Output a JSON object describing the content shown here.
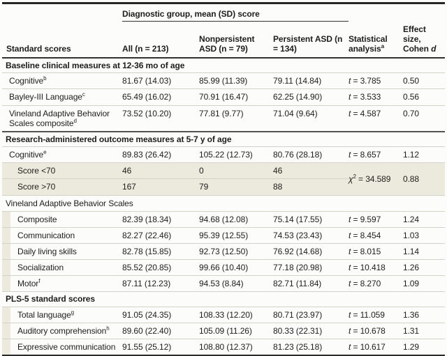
{
  "colors": {
    "row_shade": "#eceadd",
    "rule_dark": "#262624",
    "rule_section": "#52524e",
    "rule_light": "#d4d1c8",
    "text": "#1d1d1b"
  },
  "header": {
    "standard_scores": "Standard scores",
    "spanner": "Diagnostic group, mean (SD) score",
    "all": "All (n = 213)",
    "nonpersistent": "Nonpersistent ASD (n = 79)",
    "persistent": "Persistent ASD (n = 134)",
    "statistical": "Statistical analysis",
    "statistical_sup": "a",
    "effect": "Effect size, Cohen ",
    "effect_italic": "d"
  },
  "rows": {
    "0": {
      "type": "section",
      "label": "Baseline clinical measures at 12-36 mo of age"
    },
    "1": {
      "type": "data",
      "label": "Cognitive",
      "sup": "b",
      "all": "81.67 (14.03)",
      "nonpersistent": "85.99 (11.39)",
      "persistent": "79.11 (14.84)",
      "stat_sym": "t",
      "stat_rest": " = 3.785",
      "effect": "0.50"
    },
    "2": {
      "type": "data",
      "label": "Bayley-III Language",
      "sup": "c",
      "all": "65.49 (16.02)",
      "nonpersistent": "70.91 (16.47)",
      "persistent": "62.25 (14.90)",
      "stat_sym": "t",
      "stat_rest": " = 3.533",
      "effect": "0.56"
    },
    "3": {
      "type": "data",
      "label": "Vineland Adaptive Behavior Scales composite",
      "sup": "d",
      "all": "73.52 (10.20)",
      "nonpersistent": "77.81 (9.77)",
      "persistent": "71.04 (9.64)",
      "stat_sym": "t",
      "stat_rest": " = 4.587",
      "effect": "0.70"
    },
    "4": {
      "type": "section",
      "label": "Research-administered outcome measures at 5-7 y of age"
    },
    "5": {
      "type": "data",
      "label": "Cognitive",
      "sup": "e",
      "all": "89.83 (26.42)",
      "nonpersistent": "105.22 (12.73)",
      "persistent": "80.76 (28.18)",
      "stat_sym": "t",
      "stat_rest": " = 8.657",
      "effect": "1.12"
    },
    "6": {
      "type": "data",
      "label": "Score <70",
      "all": "46",
      "nonpersistent": "0",
      "persistent": "46",
      "stat_sym": "χ",
      "stat_sup": "2",
      "stat_rest": " = 34.589",
      "effect": "0.88"
    },
    "7": {
      "type": "data",
      "label": "Score >70",
      "all": "167",
      "nonpersistent": "79",
      "persistent": "88"
    },
    "8": {
      "type": "group",
      "label": "Vineland Adaptive Behavior Scales"
    },
    "9": {
      "type": "data",
      "label": "Composite",
      "all": "82.39 (18.34)",
      "nonpersistent": "94.68 (12.08)",
      "persistent": "75.14 (17.55)",
      "stat_sym": "t",
      "stat_rest": " = 9.597",
      "effect": "1.24"
    },
    "10": {
      "type": "data",
      "label": "Communication",
      "all": "82.27 (22.46)",
      "nonpersistent": "95.39 (12.55)",
      "persistent": "74.53 (23.43)",
      "stat_sym": "t",
      "stat_rest": " = 8.454",
      "effect": "1.03"
    },
    "11": {
      "type": "data",
      "label": "Daily living skills",
      "all": "82.78 (15.85)",
      "nonpersistent": "92.73 (12.50)",
      "persistent": "76.92 (14.68)",
      "stat_sym": "t",
      "stat_rest": " = 8.015",
      "effect": "1.14"
    },
    "12": {
      "type": "data",
      "label": "Socialization",
      "all": "85.52 (20.85)",
      "nonpersistent": "99.66 (10.40)",
      "persistent": "77.18 (20.98)",
      "stat_sym": "t",
      "stat_rest": " = 10.418",
      "effect": "1.26"
    },
    "13": {
      "type": "data",
      "label": "Motor",
      "sup": "f",
      "all": "87.11 (12.23)",
      "nonpersistent": "94.53 (8.84)",
      "persistent": "82.71 (11.84)",
      "stat_sym": "t",
      "stat_rest": " = 8.270",
      "effect": "1.09"
    },
    "14": {
      "type": "section",
      "label": "PLS-5 standard scores"
    },
    "15": {
      "type": "data",
      "label": "Total language",
      "sup": "g",
      "all": "91.05 (24.35)",
      "nonpersistent": "108.33 (12.20)",
      "persistent": "80.71 (23.97)",
      "stat_sym": "t",
      "stat_rest": " = 11.059",
      "effect": "1.36"
    },
    "16": {
      "type": "data",
      "label": "Auditory comprehension",
      "sup": "h",
      "all": "89.60 (22.40)",
      "nonpersistent": "105.09 (11.26)",
      "persistent": "80.33 (22.31)",
      "stat_sym": "t",
      "stat_rest": " = 10.678",
      "effect": "1.31"
    },
    "17": {
      "type": "data",
      "label": "Expressive communication",
      "all": "91.55 (25.12)",
      "nonpersistent": "108.80 (12.37)",
      "persistent": "81.23 (25.18)",
      "stat_sym": "t",
      "stat_rest": " = 10.617",
      "effect": "1.29"
    }
  }
}
